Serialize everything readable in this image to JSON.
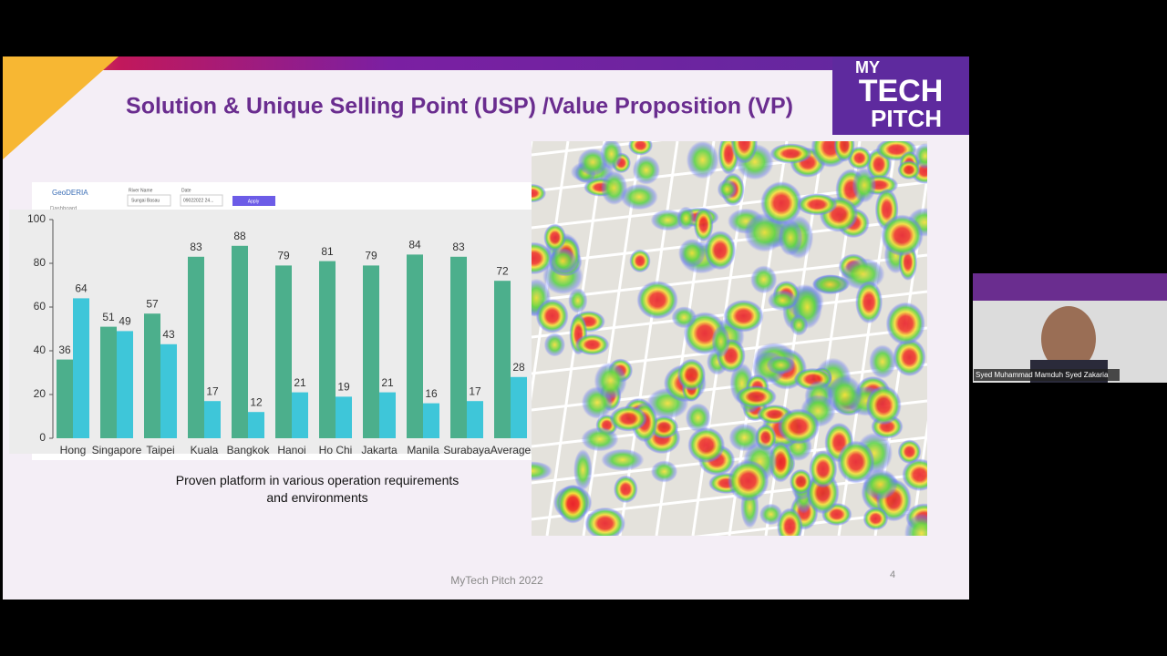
{
  "slide": {
    "title": "Solution & Unique Selling Point (USP) /Value Proposition (VP)",
    "caption": "Proven platform in various operation requirements and environments",
    "footer": "MyTech Pitch 2022",
    "page": "4",
    "logo": [
      "MY",
      "TECH",
      "PITCH"
    ]
  },
  "dashboard": {
    "app": "GeoDERIA",
    "menu": "Dashboard",
    "filters": [
      {
        "label": "River Name",
        "value": "Sungai Basau"
      },
      {
        "label": "Date",
        "value": "09022022 24..."
      }
    ],
    "button": "Apply"
  },
  "chart_data": {
    "type": "bar",
    "categories": [
      "Hong",
      "Singapore",
      "Taipei",
      "Kuala",
      "Bangkok",
      "Hanoi",
      "Ho Chi",
      "Jakarta",
      "Manila",
      "Surabaya",
      "Average"
    ],
    "series": [
      {
        "color": "#4caf8c",
        "values": [
          36,
          51,
          57,
          83,
          88,
          79,
          81,
          79,
          84,
          83,
          72
        ]
      },
      {
        "color": "#3ec6d9",
        "values": [
          64,
          49,
          43,
          17,
          12,
          21,
          19,
          21,
          16,
          17,
          28
        ]
      }
    ],
    "ylim": [
      0,
      100
    ],
    "yticks": [
      0,
      20,
      40,
      60,
      80,
      100
    ]
  },
  "participant": {
    "name": "Syed Muhammad Mamduh Syed Zakaria"
  }
}
